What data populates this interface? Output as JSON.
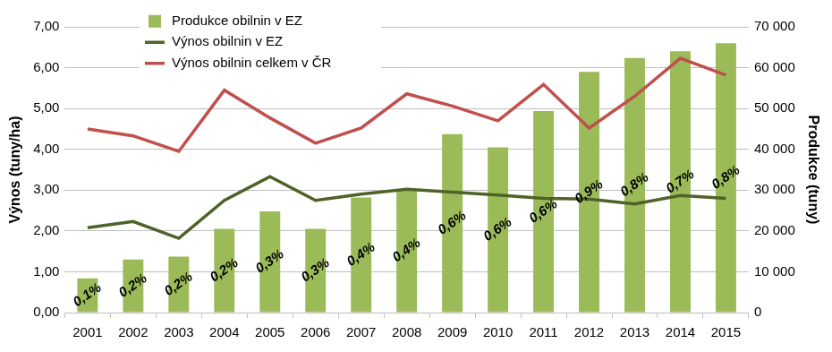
{
  "chart_data": {
    "type": "bar",
    "categories": [
      "2001",
      "2002",
      "2003",
      "2004",
      "2005",
      "2006",
      "2007",
      "2008",
      "2009",
      "2010",
      "2011",
      "2012",
      "2013",
      "2014",
      "2015"
    ],
    "series": [
      {
        "name": "Produkce obilnin v EZ",
        "type": "bar",
        "axis": "y2",
        "color": "#9bbb59",
        "values": [
          8400,
          13000,
          13700,
          20500,
          24800,
          20500,
          28200,
          30300,
          43700,
          40500,
          49400,
          59000,
          62400,
          64000,
          66000
        ],
        "shares": [
          0.1,
          0.2,
          0.2,
          0.2,
          0.3,
          0.3,
          0.4,
          0.4,
          0.6,
          0.6,
          0.6,
          0.9,
          0.8,
          0.7,
          0.8
        ],
        "share_labels": [
          "0,1%",
          "0,2%",
          "0,2%",
          "0,2%",
          "0,3%",
          "0,3%",
          "0,4%",
          "0,4%",
          "0,6%",
          "0,6%",
          "0,6%",
          "0,9%",
          "0,8%",
          "0,7%",
          "0,8%"
        ]
      },
      {
        "name": "Výnos obilnin v EZ",
        "type": "line",
        "color": "#4f6228",
        "values": [
          2.08,
          2.23,
          1.82,
          2.75,
          3.33,
          2.75,
          2.9,
          3.02,
          2.95,
          2.88,
          2.8,
          2.78,
          2.66,
          2.87,
          2.8
        ]
      },
      {
        "name": "Výnos obilnin celkem v ČR",
        "type": "line",
        "color": "#c0504d",
        "values": [
          4.5,
          4.33,
          3.95,
          5.45,
          4.77,
          4.15,
          4.52,
          5.36,
          5.06,
          4.7,
          5.59,
          4.52,
          5.3,
          6.23,
          5.82
        ]
      }
    ],
    "ylabel": "Výnos (tuny/ha)",
    "y2label": "Produkce (tuny)",
    "ylim": [
      0,
      7
    ],
    "yticks": [
      {
        "value": 0,
        "label": "0,00"
      },
      {
        "value": 1,
        "label": "1,00"
      },
      {
        "value": 2,
        "label": "2,00"
      },
      {
        "value": 3,
        "label": "3,00"
      },
      {
        "value": 4,
        "label": "4,00"
      },
      {
        "value": 5,
        "label": "5,00"
      },
      {
        "value": 6,
        "label": "6,00"
      },
      {
        "value": 7,
        "label": "7,00"
      }
    ],
    "y2lim": [
      0,
      70000
    ],
    "y2ticks": [
      0,
      {
        "value": 10000,
        "label": "10 000"
      },
      {
        "value": 20000,
        "label": "20 000"
      },
      {
        "value": 30000,
        "label": "30 000"
      },
      {
        "value": 40000,
        "label": "40 000"
      },
      {
        "value": 50000,
        "label": "50 000"
      },
      {
        "value": 60000,
        "label": "60 000"
      },
      {
        "value": 70000,
        "label": "70 000"
      }
    ],
    "grid": true,
    "legend": "top"
  }
}
